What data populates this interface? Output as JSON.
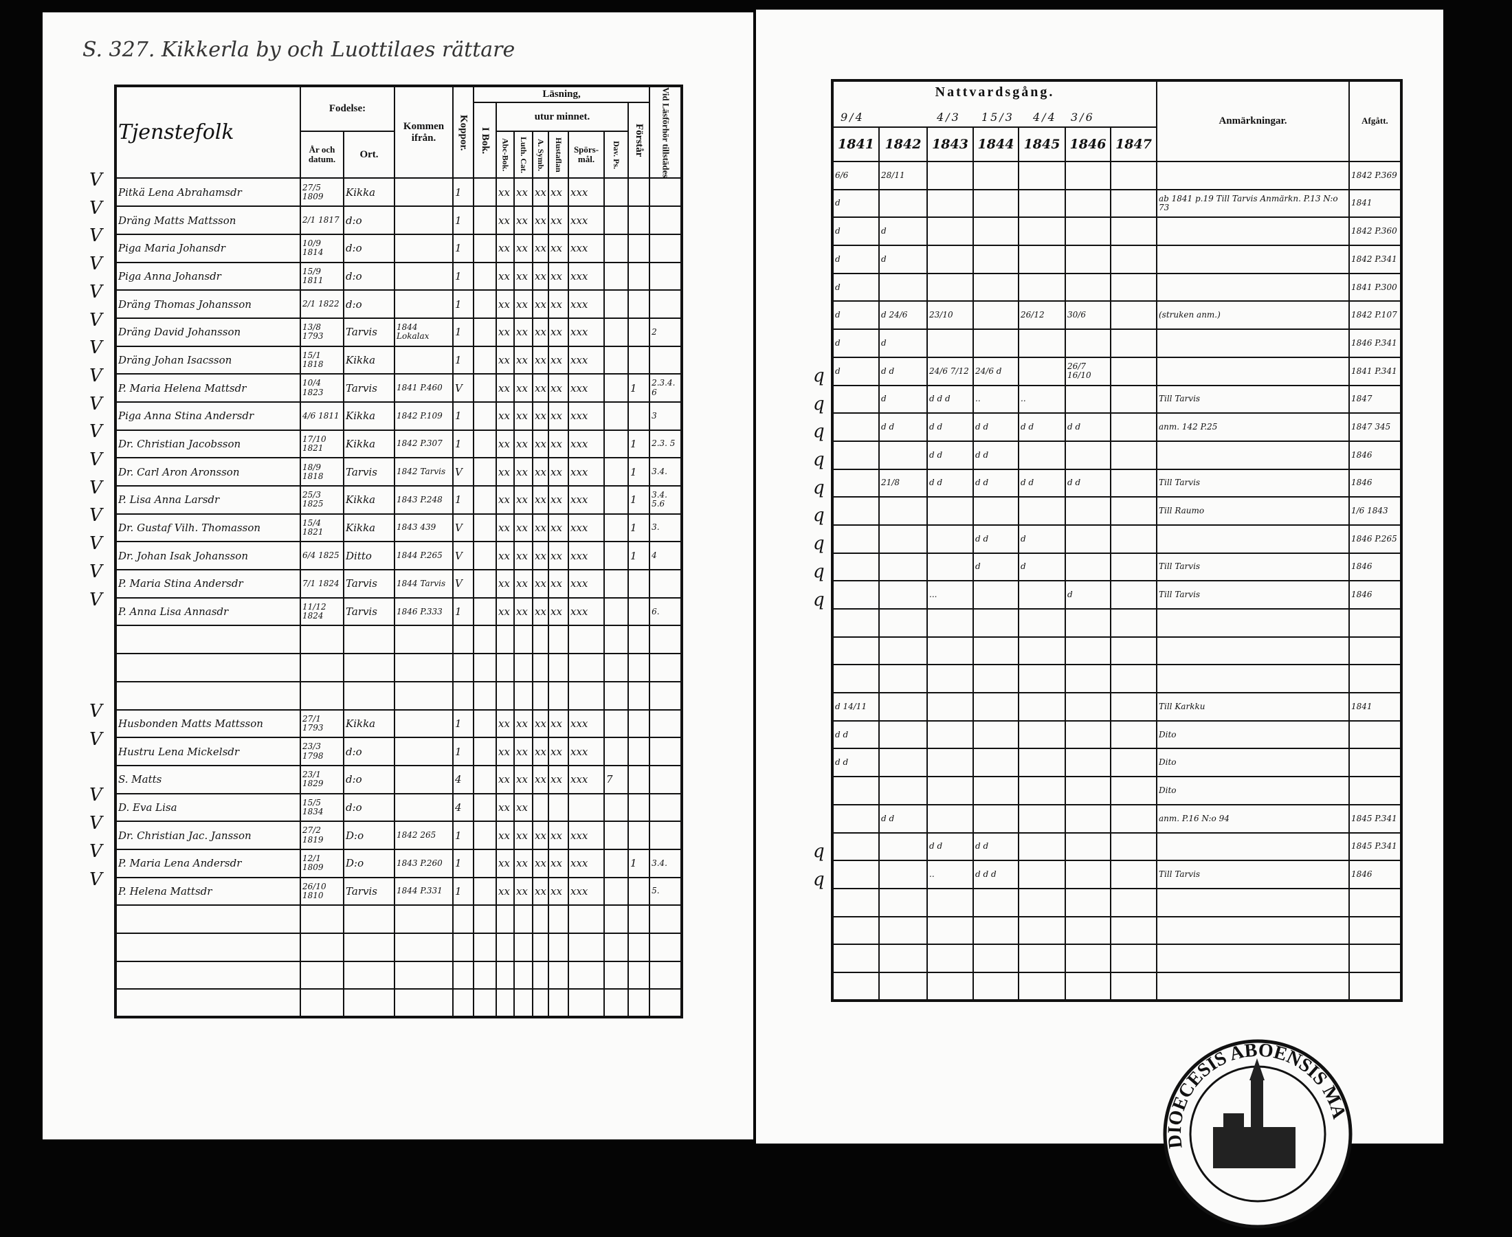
{
  "heading": "S. 327. Kikkerla by och Luottilaes rättare",
  "left_header": {
    "name": "Tjenstefolk",
    "fodelse": "Fodelse:",
    "ar": "År och datum.",
    "ort": "Ort.",
    "kommen": "Kommen ifrån.",
    "koppor": "Koppor.",
    "lasning": "Läsning,",
    "i_bok": "I Bok.",
    "utur": "utur minnet.",
    "abc": "Abc-Bok.",
    "luth": "Luth. Cat.",
    "symb": "A. Symb.",
    "hust": "Hustaflan",
    "spors": "Spörs-mål.",
    "dav": "Dav. Ps.",
    "forstar": "Förstår",
    "vid": "Vid Läsförhör tillstädes"
  },
  "right_header": {
    "title": "Nattvardsgång.",
    "dates": [
      "9/4",
      "4/3",
      "15/3",
      "4/4",
      "3/6"
    ],
    "years": [
      "1841",
      "1842",
      "1843",
      "1844",
      "1845",
      "1846",
      "1847"
    ],
    "anm": "Anmärkningar.",
    "afgatt": "Afgått."
  },
  "rows": [
    {
      "m": "V",
      "name": "Pitkä Lena Abrahamsdr",
      "born": "27/5 1809",
      "place": "Kikka",
      "from": "",
      "kop": "1",
      "rd": [
        "xx",
        "xx",
        "xx",
        "xx",
        "xxx"
      ],
      "c": [
        "6/6",
        "28/11",
        "",
        "",
        "",
        "",
        ""
      ],
      "rm": "",
      "af": "1842 P.369"
    },
    {
      "m": "V",
      "name": "Dräng Matts Mattsson",
      "born": "2/1 1817",
      "place": "d:o",
      "from": "",
      "kop": "1",
      "rd": [
        "xx",
        "xx",
        "xx",
        "xx",
        "xxx"
      ],
      "c": [
        "d",
        "",
        "",
        "",
        "",
        "",
        ""
      ],
      "rm": "ab 1841 p.19 Till Tarvis Anmärkn. P.13 N:o 73",
      "af": "1841"
    },
    {
      "m": "V",
      "name": "Piga Maria Johansdr",
      "born": "10/9 1814",
      "place": "d:o",
      "from": "",
      "kop": "1",
      "rd": [
        "xx",
        "xx",
        "xx",
        "xx",
        "xxx"
      ],
      "c": [
        "d",
        "d",
        "",
        "",
        "",
        "",
        ""
      ],
      "rm": "",
      "af": "1842 P.360"
    },
    {
      "m": "V",
      "name": "Piga Anna Johansdr",
      "born": "15/9 1811",
      "place": "d:o",
      "from": "",
      "kop": "1",
      "rd": [
        "xx",
        "xx",
        "xx",
        "xx",
        "xxx"
      ],
      "c": [
        "d",
        "d",
        "",
        "",
        "",
        "",
        ""
      ],
      "rm": "",
      "af": "1842 P.341"
    },
    {
      "m": "V",
      "name": "Dräng Thomas Johansson",
      "born": "2/1 1822",
      "place": "d:o",
      "from": "",
      "kop": "1",
      "rd": [
        "xx",
        "xx",
        "xx",
        "xx",
        "xxx"
      ],
      "c": [
        "d",
        "",
        "",
        "",
        "",
        "",
        ""
      ],
      "rm": "",
      "af": "1841 P.300"
    },
    {
      "m": "V",
      "name": "Dräng David Johansson",
      "born": "13/8 1793",
      "place": "Tarvis",
      "from": "1844 Lokalax",
      "kop": "1",
      "rd": [
        "xx",
        "xx",
        "xx",
        "xx",
        "xxx"
      ],
      "vid": "2",
      "c": [
        "d",
        "d 24/6",
        "23/10",
        "",
        "26/12",
        "30/6",
        ""
      ],
      "rm": "(struken anm.)",
      "af": "1842 P.107"
    },
    {
      "m": "V",
      "name": "Dräng Johan Isacsson",
      "born": "15/1 1818",
      "place": "Kikka",
      "from": "",
      "kop": "1",
      "rd": [
        "xx",
        "xx",
        "xx",
        "xx",
        "xxx"
      ],
      "c": [
        "d",
        "d",
        "",
        "",
        "",
        "",
        ""
      ],
      "rm": "",
      "af": "1846 P.341"
    },
    {
      "m": "V",
      "name": "P. Maria Helena Mattsdr",
      "born": "10/4 1823",
      "place": "Tarvis",
      "from": "1841 P.460",
      "kop": "V",
      "rd": [
        "xx",
        "xx",
        "xx",
        "xx",
        "xxx"
      ],
      "fr": "1",
      "vid": "2.3.4. 6",
      "c": [
        "d",
        "d d",
        "24/6 7/12",
        "24/6 d",
        "",
        "26/7 16/10",
        ""
      ],
      "rm": "",
      "af": "1841 P.341",
      "q": "q"
    },
    {
      "m": "V",
      "name": "Piga Anna Stina Andersdr",
      "born": "4/6 1811",
      "place": "Kikka",
      "from": "1842 P.109",
      "kop": "1",
      "rd": [
        "xx",
        "xx",
        "xx",
        "xx",
        "xxx"
      ],
      "vid": "3",
      "c": [
        "",
        "d",
        "d d d",
        "..",
        "..",
        "",
        ""
      ],
      "rm": "Till Tarvis",
      "af": "1847",
      "q": "q"
    },
    {
      "m": "V",
      "name": "Dr. Christian Jacobsson",
      "born": "17/10 1821",
      "place": "Kikka",
      "from": "1842 P.307",
      "kop": "1",
      "rd": [
        "xx",
        "xx",
        "xx",
        "xx",
        "xxx"
      ],
      "fr": "1",
      "vid": "2.3. 5",
      "c": [
        "",
        "d d",
        "d d",
        "d d",
        "d d",
        "d d",
        ""
      ],
      "rm": "anm. 142 P.25",
      "af": "1847 345",
      "q": "q"
    },
    {
      "m": "V",
      "name": "Dr. Carl Aron Aronsson",
      "born": "18/9 1818",
      "place": "Tarvis",
      "from": "1842 Tarvis",
      "kop": "V",
      "rd": [
        "xx",
        "xx",
        "xx",
        "xx",
        "xxx"
      ],
      "fr": "1",
      "vid": "3.4.",
      "c": [
        "",
        "",
        "d d",
        "d d",
        "",
        "",
        ""
      ],
      "rm": "",
      "af": "1846",
      "q": "q"
    },
    {
      "m": "V",
      "name": "P. Lisa Anna Larsdr",
      "born": "25/3 1825",
      "place": "Kikka",
      "from": "1843 P.248",
      "kop": "1",
      "rd": [
        "xx",
        "xx",
        "xx",
        "xx",
        "xxx"
      ],
      "fr": "1",
      "vid": "3.4. 5.6",
      "c": [
        "",
        "21/8",
        "d d",
        "d d",
        "d d",
        "d d",
        ""
      ],
      "rm": "Till Tarvis",
      "af": "1846",
      "q": "q"
    },
    {
      "m": "V",
      "name": "Dr. Gustaf Vilh. Thomasson",
      "born": "15/4 1821",
      "place": "Kikka",
      "from": "1843 439",
      "kop": "V",
      "rd": [
        "xx",
        "xx",
        "xx",
        "xx",
        "xxx"
      ],
      "fr": "1",
      "vid": "3.",
      "c": [
        "",
        "",
        "",
        "",
        "",
        "",
        ""
      ],
      "rm": "Till Raumo",
      "af": "1/6 1843",
      "q": "q"
    },
    {
      "m": "V",
      "name": "Dr. Johan Isak Johansson",
      "born": "6/4 1825",
      "place": "Ditto",
      "from": "1844 P.265",
      "kop": "V",
      "rd": [
        "xx",
        "xx",
        "xx",
        "xx",
        "xxx"
      ],
      "fr": "1",
      "vid": "4",
      "c": [
        "",
        "",
        "",
        "d d",
        "d",
        "",
        ""
      ],
      "rm": "",
      "af": "1846 P.265",
      "q": "q"
    },
    {
      "m": "V",
      "name": "P. Maria Stina Andersdr",
      "born": "7/1 1824",
      "place": "Tarvis",
      "from": "1844 Tarvis",
      "kop": "V",
      "rd": [
        "xx",
        "xx",
        "xx",
        "xx",
        "xxx"
      ],
      "c": [
        "",
        "",
        "",
        "d",
        "d",
        "",
        ""
      ],
      "rm": "Till Tarvis",
      "af": "1846",
      "q": "q"
    },
    {
      "m": "V",
      "name": "P. Anna Lisa Annasdr",
      "born": "11/12 1824",
      "place": "Tarvis",
      "from": "1846 P.333",
      "kop": "1",
      "rd": [
        "xx",
        "xx",
        "xx",
        "xx",
        "xxx"
      ],
      "vid": "6.",
      "c": [
        "",
        "",
        "...",
        "",
        "",
        "d",
        ""
      ],
      "rm": "Till Tarvis",
      "af": "1846",
      "q": "q"
    },
    {},
    {},
    {},
    {
      "m": "V",
      "name": "Husbonden Matts Mattsson",
      "born": "27/1 1793",
      "place": "Kikka",
      "from": "",
      "kop": "1",
      "rd": [
        "xx",
        "xx",
        "xx",
        "xx",
        "xxx"
      ],
      "c": [
        "d 14/11",
        "",
        "",
        "",
        "",
        "",
        ""
      ],
      "rm": "Till Karkku",
      "af": "1841"
    },
    {
      "m": "V",
      "name": "Hustru Lena Mickelsdr",
      "born": "23/3 1798",
      "place": "d:o",
      "from": "",
      "kop": "1",
      "rd": [
        "xx",
        "xx",
        "xx",
        "xx",
        "xxx"
      ],
      "c": [
        "d d",
        "",
        "",
        "",
        "",
        "",
        ""
      ],
      "rm": "Dito"
    },
    {
      "m": "",
      "name": "S. Matts",
      "born": "23/1 1829",
      "place": "d:o",
      "from": "",
      "kop": "4",
      "rd": [
        "xx",
        "xx",
        "xx",
        "xx",
        "xxx"
      ],
      "dav": "7",
      "c": [
        "d d",
        "",
        "",
        "",
        "",
        "",
        ""
      ],
      "rm": "Dito"
    },
    {
      "m": "V",
      "name": "D. Eva Lisa",
      "born": "15/5 1834",
      "place": "d:o",
      "from": "",
      "kop": "4",
      "rd": [
        "xx",
        "xx",
        "",
        "",
        ""
      ],
      "c": [
        "",
        "",
        "",
        "",
        "",
        "",
        ""
      ],
      "rm": "Dito"
    },
    {
      "m": "V",
      "name": "Dr. Christian Jac. Jansson",
      "born": "27/2 1819",
      "place": "D:o",
      "from": "1842 265",
      "kop": "1",
      "rd": [
        "xx",
        "xx",
        "xx",
        "xx",
        "xxx"
      ],
      "c": [
        "",
        "d d",
        "",
        "",
        "",
        "",
        ""
      ],
      "rm": "anm. P.16 N:o 94",
      "af": "1845 P.341"
    },
    {
      "m": "V",
      "name": "P. Maria Lena Andersdr",
      "born": "12/1 1809",
      "place": "D:o",
      "from": "1843 P.260",
      "kop": "1",
      "rd": [
        "xx",
        "xx",
        "xx",
        "xx",
        "xxx"
      ],
      "fr": "1",
      "vid": "3.4.",
      "c": [
        "",
        "",
        "d d",
        "d d",
        "",
        "",
        ""
      ],
      "rm": "",
      "af": "1845 P.341",
      "q": "q"
    },
    {
      "m": "V",
      "name": "P. Helena Mattsdr",
      "born": "26/10 1810",
      "place": "Tarvis",
      "from": "1844 P.331",
      "kop": "1",
      "rd": [
        "xx",
        "xx",
        "xx",
        "xx",
        "xxx"
      ],
      "vid": "5.",
      "c": [
        "",
        "",
        "..",
        "d d d",
        "",
        "",
        ""
      ],
      "rm": "Till Tarvis",
      "af": "1846",
      "q": "q"
    },
    {},
    {},
    {},
    {}
  ],
  "stamp_text": "DIOECESIS ABOENSIS MA"
}
